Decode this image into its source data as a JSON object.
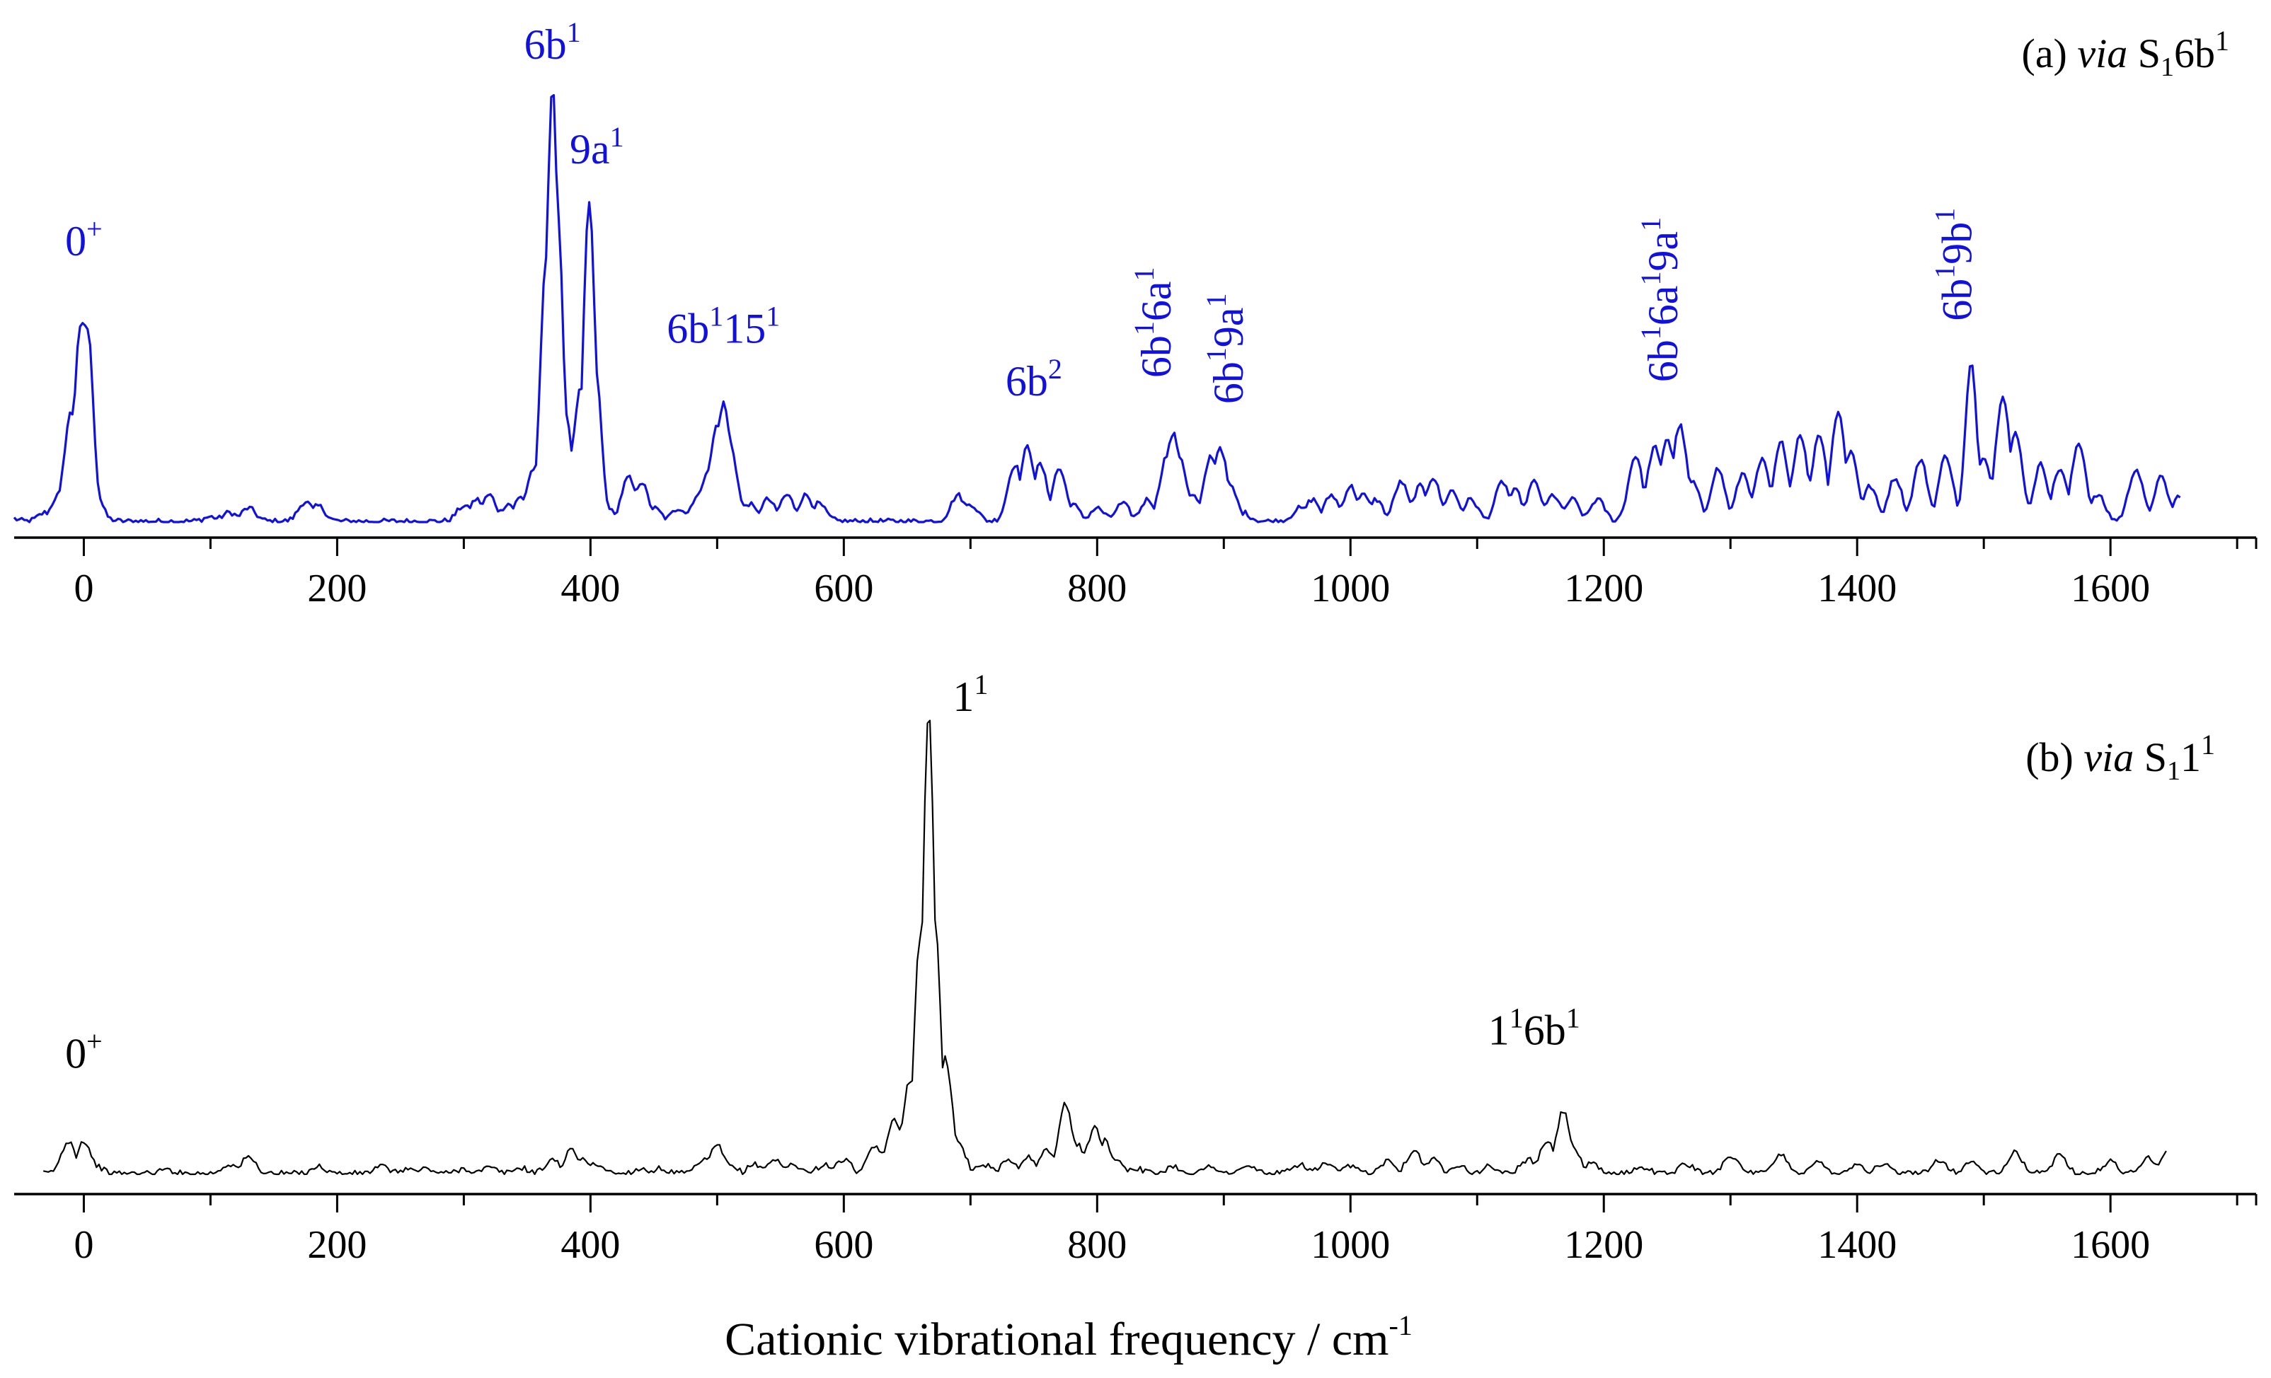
{
  "chart_data": [
    {
      "type": "line",
      "panel": "a",
      "title": {
        "prefix": "(a) ",
        "via": "via",
        "state": "S",
        "state_sub": "1",
        "mode": "6b",
        "mode_sup": "1"
      },
      "color": "#1010e0",
      "xlim": [
        -55,
        1715
      ],
      "ylim": [
        0,
        1
      ],
      "xticks": [
        0,
        200,
        400,
        600,
        800,
        1000,
        1200,
        1400,
        1600
      ],
      "tick_labels": [
        "0",
        "200",
        "400",
        "600",
        "800",
        "1000",
        "1200",
        "1400",
        "1600"
      ],
      "peaks": [
        [
          -60,
          0.01
        ],
        [
          -30,
          0.02
        ],
        [
          -20,
          0.06
        ],
        [
          -10,
          0.25
        ],
        [
          -3,
          0.44
        ],
        [
          0,
          0.46
        ],
        [
          3,
          0.44
        ],
        [
          8,
          0.08
        ],
        [
          15,
          0.01
        ],
        [
          100,
          0.01
        ],
        [
          115,
          0.02
        ],
        [
          130,
          0.03
        ],
        [
          175,
          0.045
        ],
        [
          185,
          0.035
        ],
        [
          300,
          0.035
        ],
        [
          310,
          0.05
        ],
        [
          320,
          0.06
        ],
        [
          335,
          0.04
        ],
        [
          345,
          0.055
        ],
        [
          355,
          0.12
        ],
        [
          365,
          0.6
        ],
        [
          370,
          1.0
        ],
        [
          374,
          0.7
        ],
        [
          380,
          0.25
        ],
        [
          385,
          0.12
        ],
        [
          392,
          0.3
        ],
        [
          399,
          0.73
        ],
        [
          404,
          0.35
        ],
        [
          410,
          0.05
        ],
        [
          430,
          0.1
        ],
        [
          440,
          0.09
        ],
        [
          450,
          0.03
        ],
        [
          470,
          0.03
        ],
        [
          485,
          0.06
        ],
        [
          493,
          0.12
        ],
        [
          500,
          0.22
        ],
        [
          505,
          0.27
        ],
        [
          510,
          0.18
        ],
        [
          515,
          0.06
        ],
        [
          525,
          0.04
        ],
        [
          540,
          0.05
        ],
        [
          555,
          0.06
        ],
        [
          570,
          0.06
        ],
        [
          580,
          0.04
        ],
        [
          690,
          0.06
        ],
        [
          700,
          0.04
        ],
        [
          735,
          0.13
        ],
        [
          745,
          0.17
        ],
        [
          755,
          0.13
        ],
        [
          770,
          0.12
        ],
        [
          780,
          0.04
        ],
        [
          800,
          0.03
        ],
        [
          820,
          0.04
        ],
        [
          840,
          0.05
        ],
        [
          855,
          0.15
        ],
        [
          860,
          0.2
        ],
        [
          865,
          0.15
        ],
        [
          875,
          0.06
        ],
        [
          890,
          0.15
        ],
        [
          897,
          0.17
        ],
        [
          905,
          0.08
        ],
        [
          915,
          0.02
        ],
        [
          960,
          0.03
        ],
        [
          970,
          0.05
        ],
        [
          985,
          0.06
        ],
        [
          1000,
          0.08
        ],
        [
          1010,
          0.06
        ],
        [
          1020,
          0.05
        ],
        [
          1040,
          0.09
        ],
        [
          1055,
          0.08
        ],
        [
          1065,
          0.1
        ],
        [
          1080,
          0.07
        ],
        [
          1095,
          0.05
        ],
        [
          1120,
          0.09
        ],
        [
          1130,
          0.07
        ],
        [
          1145,
          0.09
        ],
        [
          1160,
          0.06
        ],
        [
          1175,
          0.05
        ],
        [
          1195,
          0.05
        ],
        [
          1225,
          0.15
        ],
        [
          1240,
          0.17
        ],
        [
          1250,
          0.19
        ],
        [
          1260,
          0.22
        ],
        [
          1270,
          0.09
        ],
        [
          1290,
          0.12
        ],
        [
          1310,
          0.11
        ],
        [
          1325,
          0.14
        ],
        [
          1340,
          0.18
        ],
        [
          1355,
          0.2
        ],
        [
          1370,
          0.2
        ],
        [
          1385,
          0.25
        ],
        [
          1395,
          0.16
        ],
        [
          1410,
          0.08
        ],
        [
          1430,
          0.1
        ],
        [
          1450,
          0.14
        ],
        [
          1470,
          0.15
        ],
        [
          1490,
          0.36
        ],
        [
          1500,
          0.15
        ],
        [
          1515,
          0.29
        ],
        [
          1525,
          0.2
        ],
        [
          1545,
          0.13
        ],
        [
          1560,
          0.12
        ],
        [
          1575,
          0.18
        ],
        [
          1590,
          0.06
        ],
        [
          1620,
          0.12
        ],
        [
          1640,
          0.1
        ],
        [
          1655,
          0.06
        ]
      ],
      "labels": [
        {
          "base": "0",
          "sup": "+",
          "x": 0,
          "y": 0.61,
          "rotate": false
        },
        {
          "base": "6b",
          "sup": "1",
          "x": 370,
          "y": 1.06,
          "rotate": false
        },
        {
          "base": "9a",
          "sup": "1",
          "x": 405,
          "y": 0.82,
          "rotate": false
        },
        {
          "base": "6b",
          "sup": "1",
          "base2": "15",
          "sup2": "1",
          "x": 505,
          "y": 0.41,
          "rotate": false
        },
        {
          "base": "6b",
          "sup": "2",
          "x": 750,
          "y": 0.29,
          "rotate": false
        },
        {
          "base": "6b",
          "sup": "1",
          "base2": "6a",
          "sup2": "1",
          "x": 858,
          "y": 0.33,
          "rotate": true
        },
        {
          "base": "6b",
          "sup": "1",
          "base2": "9a",
          "sup2": "1",
          "x": 915,
          "y": 0.27,
          "rotate": true
        },
        {
          "base": "6b",
          "sup": "1",
          "base2": "6a",
          "sup2": "1",
          "base3": "9a",
          "sup3": "1",
          "x": 1258,
          "y": 0.32,
          "rotate": true
        },
        {
          "base": "6b",
          "sup": "1",
          "base2": "9b",
          "sup2": "1",
          "x": 1490,
          "y": 0.46,
          "rotate": true
        }
      ]
    },
    {
      "type": "line",
      "panel": "b",
      "title": {
        "prefix": "(b) ",
        "via": "via",
        "state": "S",
        "state_sub": "1",
        "mode": "1",
        "mode_sup": "1"
      },
      "color": "#000000",
      "xlim": [
        -55,
        1715
      ],
      "ylim": [
        0,
        1
      ],
      "xticks": [
        0,
        200,
        400,
        600,
        800,
        1000,
        1200,
        1400,
        1600
      ],
      "tick_labels": [
        "0",
        "200",
        "400",
        "600",
        "800",
        "1000",
        "1200",
        "1400",
        "1600"
      ],
      "xlabel": {
        "text": "Cationic vibrational frequency / cm",
        "sup": "-1"
      },
      "peaks": [
        [
          -12,
          0.07
        ],
        [
          0,
          0.07
        ],
        [
          8,
          0.02
        ],
        [
          65,
          0.008
        ],
        [
          115,
          0.02
        ],
        [
          130,
          0.035
        ],
        [
          185,
          0.015
        ],
        [
          235,
          0.015
        ],
        [
          255,
          0.01
        ],
        [
          270,
          0.01
        ],
        [
          300,
          0.01
        ],
        [
          320,
          0.012
        ],
        [
          345,
          0.012
        ],
        [
          370,
          0.03
        ],
        [
          385,
          0.05
        ],
        [
          395,
          0.03
        ],
        [
          405,
          0.02
        ],
        [
          440,
          0.01
        ],
        [
          455,
          0.01
        ],
        [
          490,
          0.03
        ],
        [
          500,
          0.06
        ],
        [
          510,
          0.015
        ],
        [
          530,
          0.02
        ],
        [
          545,
          0.03
        ],
        [
          560,
          0.02
        ],
        [
          585,
          0.02
        ],
        [
          600,
          0.03
        ],
        [
          625,
          0.06
        ],
        [
          640,
          0.12
        ],
        [
          652,
          0.2
        ],
        [
          660,
          0.5
        ],
        [
          667,
          1.0
        ],
        [
          672,
          0.55
        ],
        [
          680,
          0.25
        ],
        [
          690,
          0.07
        ],
        [
          710,
          0.02
        ],
        [
          730,
          0.03
        ],
        [
          745,
          0.035
        ],
        [
          760,
          0.05
        ],
        [
          775,
          0.15
        ],
        [
          785,
          0.06
        ],
        [
          798,
          0.1
        ],
        [
          806,
          0.07
        ],
        [
          815,
          0.03
        ],
        [
          830,
          0.012
        ],
        [
          860,
          0.015
        ],
        [
          890,
          0.015
        ],
        [
          920,
          0.015
        ],
        [
          960,
          0.02
        ],
        [
          980,
          0.02
        ],
        [
          1000,
          0.015
        ],
        [
          1030,
          0.03
        ],
        [
          1050,
          0.05
        ],
        [
          1065,
          0.03
        ],
        [
          1085,
          0.02
        ],
        [
          1110,
          0.015
        ],
        [
          1140,
          0.03
        ],
        [
          1155,
          0.07
        ],
        [
          1168,
          0.135
        ],
        [
          1175,
          0.06
        ],
        [
          1190,
          0.02
        ],
        [
          1230,
          0.015
        ],
        [
          1265,
          0.02
        ],
        [
          1300,
          0.04
        ],
        [
          1340,
          0.04
        ],
        [
          1370,
          0.025
        ],
        [
          1400,
          0.02
        ],
        [
          1420,
          0.02
        ],
        [
          1465,
          0.03
        ],
        [
          1490,
          0.025
        ],
        [
          1525,
          0.045
        ],
        [
          1560,
          0.04
        ],
        [
          1600,
          0.025
        ],
        [
          1630,
          0.035
        ],
        [
          1645,
          0.05
        ]
      ],
      "labels": [
        {
          "base": "0",
          "sup": "+",
          "x": 0,
          "y": 0.23,
          "rotate": false
        },
        {
          "base": "1",
          "sup": "1",
          "x": 700,
          "y": 1.0,
          "rotate": false
        },
        {
          "base": "1",
          "sup": "1",
          "base2": "6b",
          "sup2": "1",
          "x": 1145,
          "y": 0.28,
          "rotate": false
        }
      ]
    }
  ]
}
